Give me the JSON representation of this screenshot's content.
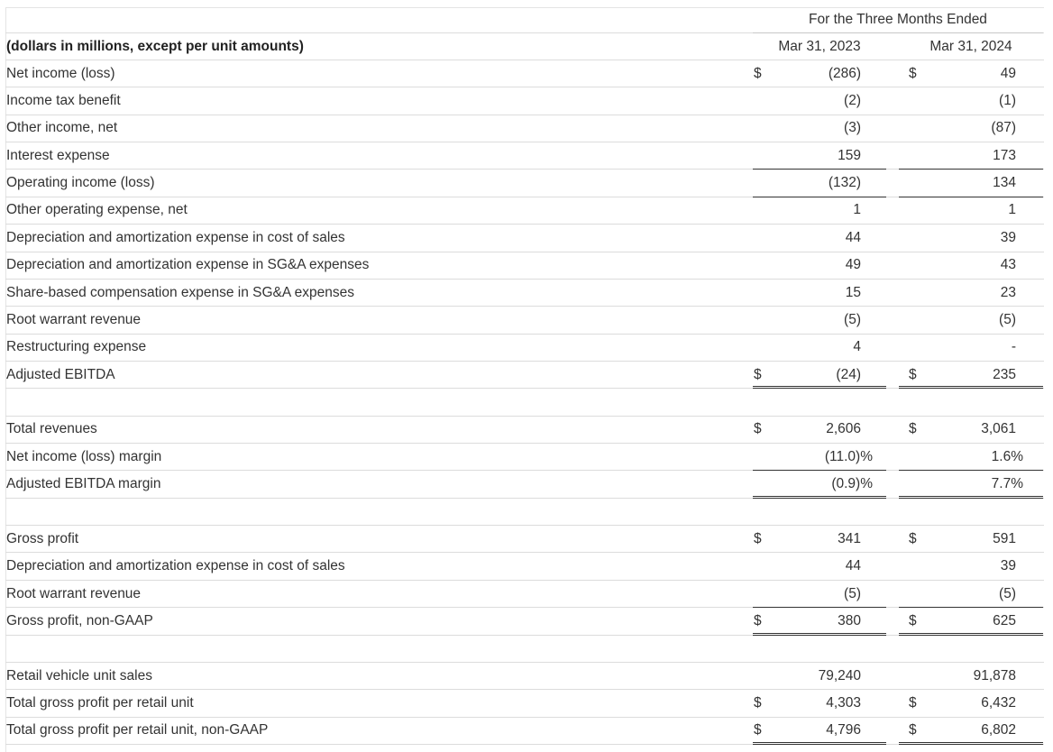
{
  "table": {
    "period_header": "For the Three Months Ended",
    "units_header": "(dollars in millions, except per unit amounts)",
    "columns": [
      "Mar 31, 2023",
      "Mar 31, 2024"
    ],
    "sections": [
      {
        "rows": [
          {
            "label": "Net income (loss)",
            "currency": "$",
            "values": [
              "(286)",
              "49"
            ]
          },
          {
            "label": "Income tax benefit",
            "values": [
              "(2)",
              "(1)"
            ]
          },
          {
            "label": "Other income, net",
            "values": [
              "(3)",
              "(87)"
            ]
          },
          {
            "label": "Interest expense",
            "values": [
              "159",
              "173"
            ]
          },
          {
            "label": "Operating income (loss)",
            "values": [
              "(132)",
              "134"
            ]
          },
          {
            "label": "Other operating expense, net",
            "values": [
              "1",
              "1"
            ]
          },
          {
            "label": "Depreciation and amortization expense in cost of sales",
            "values": [
              "44",
              "39"
            ]
          },
          {
            "label": "Depreciation and amortization expense in SG&A expenses",
            "values": [
              "49",
              "43"
            ]
          },
          {
            "label": "Share-based compensation expense in SG&A expenses",
            "values": [
              "15",
              "23"
            ]
          },
          {
            "label": "Root warrant revenue",
            "values": [
              "(5)",
              "(5)"
            ]
          },
          {
            "label": "Restructuring expense",
            "values": [
              "4",
              "-"
            ]
          },
          {
            "label": "Adjusted EBITDA",
            "currency": "$",
            "values": [
              "(24)",
              "235"
            ]
          }
        ]
      },
      {
        "rows": [
          {
            "label": "Total revenues",
            "currency": "$",
            "values": [
              "2,606",
              "3,061"
            ]
          },
          {
            "label": "Net income (loss) margin",
            "values": [
              "(11.0)%",
              "1.6%"
            ]
          },
          {
            "label": "Adjusted EBITDA margin",
            "values": [
              "(0.9)%",
              "7.7%"
            ]
          }
        ]
      },
      {
        "rows": [
          {
            "label": "Gross profit",
            "currency": "$",
            "values": [
              "341",
              "591"
            ]
          },
          {
            "label": "Depreciation and amortization expense in cost of sales",
            "values": [
              "44",
              "39"
            ]
          },
          {
            "label": "Root warrant revenue",
            "values": [
              "(5)",
              "(5)"
            ]
          },
          {
            "label": "Gross profit, non-GAAP",
            "currency": "$",
            "values": [
              "380",
              "625"
            ]
          }
        ]
      },
      {
        "rows": [
          {
            "label": "Retail vehicle unit sales",
            "values": [
              "79,240",
              "91,878"
            ]
          },
          {
            "label": "Total gross profit per retail unit",
            "currency": "$",
            "values": [
              "4,303",
              "6,432"
            ]
          },
          {
            "label": "Total gross profit per retail unit, non-GAAP",
            "currency": "$",
            "values": [
              "4,796",
              "6,802"
            ]
          }
        ]
      }
    ]
  }
}
